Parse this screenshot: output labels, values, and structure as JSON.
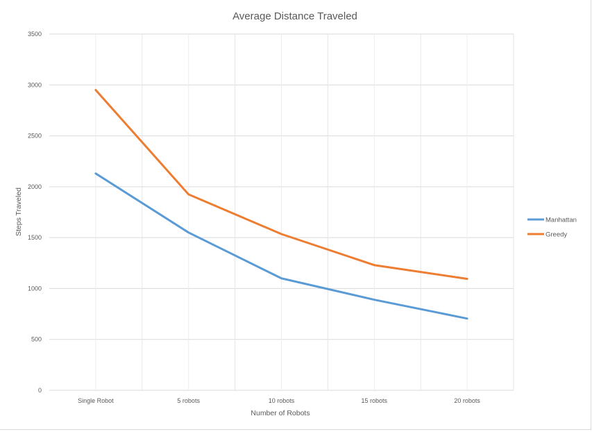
{
  "chart_data": {
    "type": "line",
    "title": "Average Distance Traveled",
    "xlabel": "Number of Robots",
    "ylabel": "Steps Traveled",
    "categories": [
      "Single Robot",
      "5 robots",
      "10 robots",
      "15 robots",
      "20 robots"
    ],
    "series": [
      {
        "name": "Manhattan",
        "color": "#5b9bd5",
        "values": [
          2130,
          1550,
          1100,
          890,
          705
        ]
      },
      {
        "name": "Greedy",
        "color": "#ed7d31",
        "values": [
          2950,
          1925,
          1535,
          1230,
          1095
        ]
      }
    ],
    "ylim": [
      0,
      3500
    ],
    "yticks": [
      0,
      500,
      1000,
      1500,
      2000,
      2500,
      3000,
      3500
    ],
    "grid": true,
    "legend_position": "right"
  }
}
